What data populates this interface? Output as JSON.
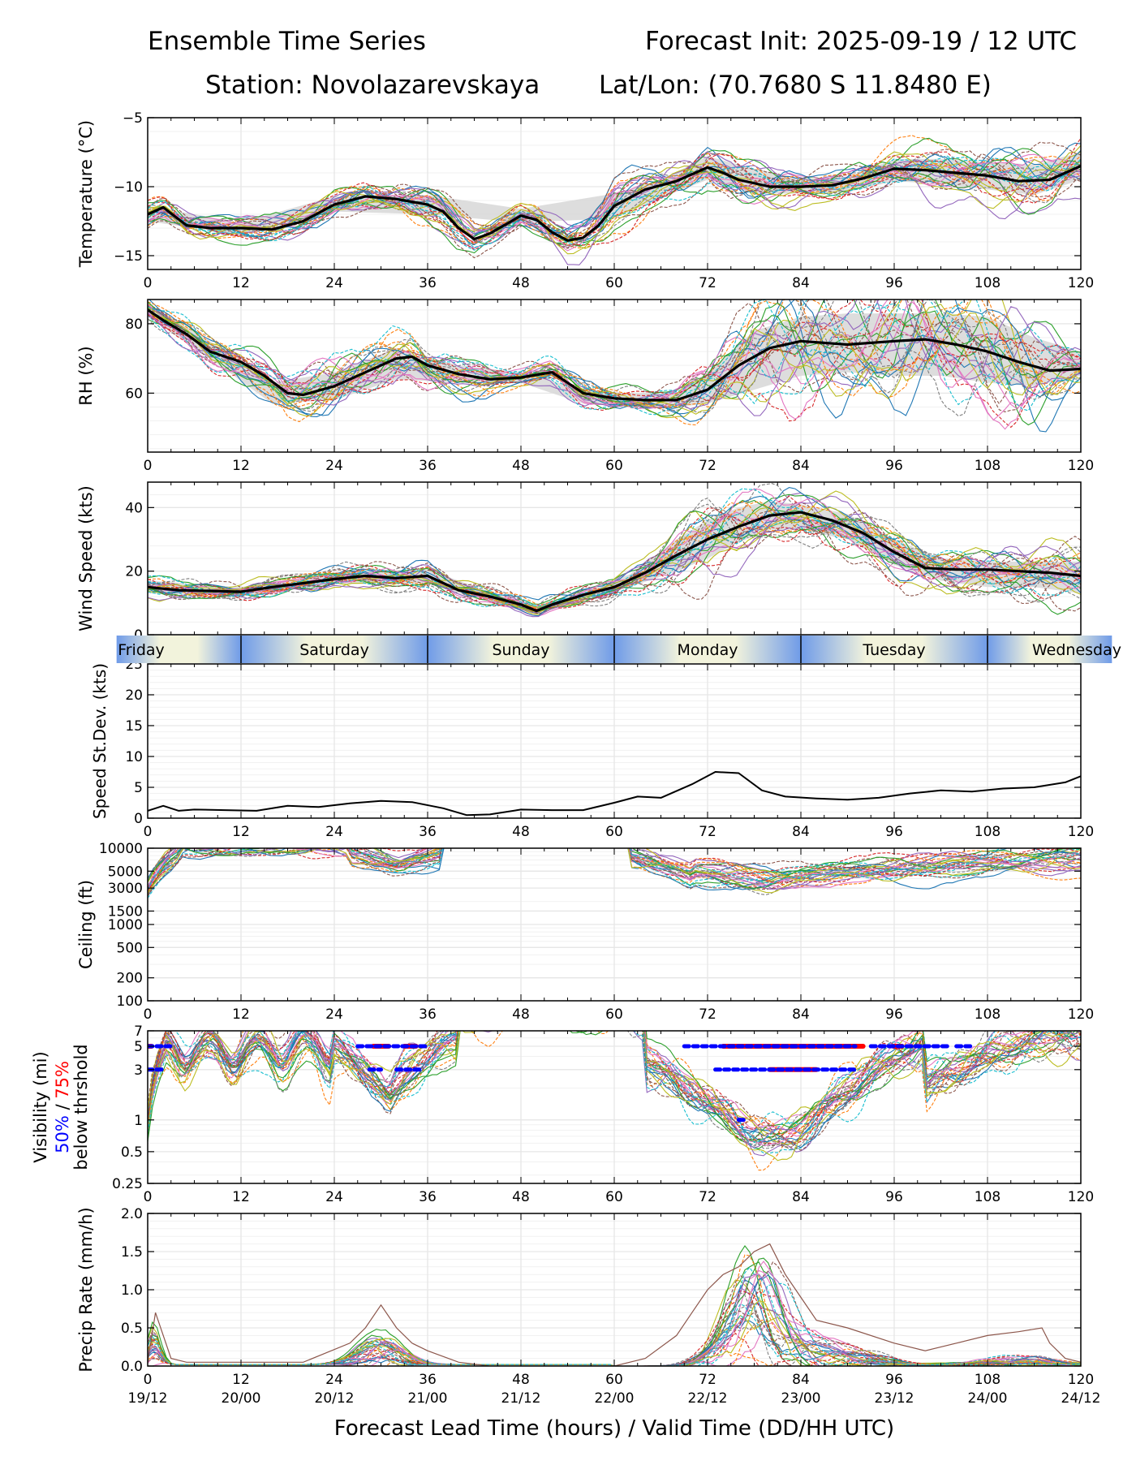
{
  "header": {
    "title_left": "Ensemble Time Series",
    "title_right": "Forecast Init: 2025-09-19 / 12 UTC",
    "station": "Station: Novolazarevskaya",
    "latlon": "Lat/Lon: (70.7680 S 11.8480 E)"
  },
  "colors": {
    "mean": "#000000",
    "spread": "#d9d9d9",
    "grid": "#e6e6e6",
    "p50": "#0000ff",
    "p75": "#ff0000",
    "members": [
      "#1f77b4",
      "#ff7f0e",
      "#2ca02c",
      "#d62728",
      "#9467bd",
      "#8c564b",
      "#e377c2",
      "#7f7f7f",
      "#bcbd22",
      "#17becf"
    ],
    "day_blue": "#6f9be8",
    "day_cream": "#f2f3dc"
  },
  "chart_data": {
    "type": "line",
    "x_ticks": [
      0,
      12,
      24,
      36,
      48,
      60,
      72,
      84,
      96,
      108,
      120
    ],
    "xlim": [
      0,
      120
    ],
    "xlabel": "Forecast Lead Time (hours) / Valid Time (DD/HH UTC)",
    "valid_times": [
      "19/12",
      "20/00",
      "20/12",
      "21/00",
      "21/12",
      "22/00",
      "22/12",
      "23/00",
      "23/12",
      "24/00",
      "24/12"
    ],
    "days": [
      {
        "label": "Friday",
        "start": -4,
        "end": 12
      },
      {
        "label": "Saturday",
        "start": 12,
        "end": 36
      },
      {
        "label": "Sunday",
        "start": 36,
        "end": 60
      },
      {
        "label": "Monday",
        "start": 60,
        "end": 84
      },
      {
        "label": "Tuesday",
        "start": 84,
        "end": 108
      },
      {
        "label": "Wednesday",
        "start": 108,
        "end": 124
      }
    ],
    "panels": [
      {
        "id": "temperature",
        "ylabel": "Temperature (°C)",
        "ylim": [
          -16,
          -5
        ],
        "yticks": [
          -15,
          -10,
          -5
        ],
        "ytick_labels": [
          "−15",
          "−10",
          "−5"
        ],
        "series": [
          {
            "name": "ensemble-mean",
            "x": [
              0,
              2,
              5,
              8,
              12,
              16,
              20,
              24,
              28,
              32,
              36,
              38,
              40,
              42,
              44,
              48,
              50,
              52,
              54,
              56,
              58,
              60,
              64,
              68,
              72,
              74,
              76,
              80,
              84,
              88,
              92,
              96,
              100,
              104,
              108,
              112,
              116,
              120
            ],
            "y": [
              -12,
              -11.5,
              -12.8,
              -13,
              -13,
              -13.1,
              -12.5,
              -11.3,
              -10.7,
              -10.9,
              -11.3,
              -11.8,
              -13.0,
              -13.8,
              -13.4,
              -12.1,
              -12.4,
              -13.3,
              -13.9,
              -13.7,
              -12.8,
              -11.4,
              -10.2,
              -9.6,
              -8.6,
              -9.0,
              -9.5,
              -10.0,
              -10.0,
              -9.9,
              -9.4,
              -8.7,
              -8.8,
              -9.0,
              -9.2,
              -9.6,
              -9.5,
              -8.5
            ]
          }
        ],
        "spread": {
          "x": [
            0,
            12,
            24,
            36,
            48,
            60,
            66,
            72,
            78,
            84,
            90,
            96,
            102,
            108,
            114,
            120
          ],
          "lo": [
            -12.5,
            -13.5,
            -11.8,
            -12.0,
            -12.6,
            -12.3,
            -10.8,
            -9.5,
            -10.5,
            -10.5,
            -10.4,
            -9.6,
            -9.8,
            -10.2,
            -10.6,
            -9.5
          ],
          "hi": [
            -11.4,
            -12.6,
            -10.7,
            -10.6,
            -11.6,
            -10.5,
            -9.5,
            -7.8,
            -8.7,
            -9.4,
            -9.3,
            -8.0,
            -8.0,
            -8.2,
            -8.4,
            -7.5
          ]
        }
      },
      {
        "id": "rh",
        "ylabel": "RH (%)",
        "ylim": [
          43,
          87
        ],
        "yticks": [
          60,
          80
        ],
        "ytick_labels": [
          "60",
          "80"
        ],
        "series": [
          {
            "name": "ensemble-mean",
            "x": [
              0,
              2,
              5,
              8,
              12,
              15,
              18,
              20,
              24,
              28,
              32,
              34,
              36,
              40,
              44,
              48,
              52,
              56,
              60,
              64,
              68,
              72,
              76,
              80,
              84,
              90,
              96,
              100,
              104,
              108,
              112,
              116,
              120
            ],
            "y": [
              84,
              81,
              77,
              72,
              69,
              65,
              60,
              59.5,
              62,
              66,
              70,
              70.5,
              68,
              65.5,
              64,
              64.5,
              66,
              60,
              58.5,
              58,
              58,
              61,
              68,
              73,
              75,
              74,
              75,
              75.5,
              74,
              72,
              69,
              66.5,
              67
            ]
          }
        ],
        "spread": {
          "x": [
            0,
            8,
            16,
            24,
            32,
            40,
            48,
            56,
            62,
            68,
            72,
            78,
            84,
            90,
            96,
            102,
            108,
            114,
            120
          ],
          "lo": [
            82,
            70,
            57,
            58,
            64,
            63,
            63,
            57,
            56,
            56,
            57,
            61,
            65,
            66,
            65,
            65,
            63,
            62,
            65
          ],
          "hi": [
            86,
            75,
            63,
            66,
            73,
            68,
            66,
            61,
            60,
            60,
            66,
            78,
            82,
            83,
            83,
            83,
            82,
            76,
            72
          ]
        }
      },
      {
        "id": "wind",
        "ylabel": "Wind Speed (kts)",
        "ylim": [
          0,
          48
        ],
        "yticks": [
          0,
          20,
          40
        ],
        "ytick_labels": [
          "0",
          "20",
          "40"
        ],
        "series": [
          {
            "name": "ensemble-mean",
            "x": [
              0,
              4,
              8,
              12,
              16,
              20,
              24,
              28,
              32,
              36,
              40,
              44,
              48,
              50,
              52,
              56,
              60,
              64,
              68,
              72,
              76,
              80,
              84,
              88,
              92,
              96,
              100,
              104,
              108,
              112,
              116,
              120
            ],
            "y": [
              15,
              14,
              13.8,
              13.5,
              15,
              16.2,
              17.5,
              18.5,
              17.8,
              18.5,
              14,
              12,
              9.5,
              7.5,
              9.5,
              12.5,
              15,
              19.5,
              25,
              30,
              34,
              37.5,
              38.5,
              36,
              32,
              26,
              21,
              20.5,
              20.5,
              20,
              19.5,
              18.5
            ]
          }
        ],
        "spread": {
          "x": [
            0,
            12,
            24,
            36,
            44,
            50,
            56,
            62,
            68,
            72,
            76,
            80,
            84,
            90,
            96,
            102,
            108,
            114,
            120
          ],
          "lo": [
            13,
            12,
            16,
            16,
            10,
            6.5,
            11,
            15,
            20,
            24,
            29,
            33,
            33,
            30,
            22,
            17,
            15,
            15,
            13
          ],
          "hi": [
            17,
            15,
            19.5,
            20.5,
            13.5,
            9,
            14,
            19,
            30,
            36,
            40,
            42,
            41,
            38,
            30,
            24,
            23,
            23,
            23
          ]
        }
      },
      {
        "id": "speed-stdev",
        "ylabel": "Speed St.Dev. (kts)",
        "ylim": [
          0,
          25
        ],
        "yticks": [
          0,
          5,
          10,
          15,
          20,
          25
        ],
        "ytick_labels": [
          "0",
          "5",
          "10",
          "15",
          "20",
          "25"
        ],
        "series": [
          {
            "name": "speed-stdev",
            "x": [
              0,
              2,
              4,
              6,
              10,
              14,
              18,
              22,
              26,
              30,
              34,
              38,
              41,
              44,
              48,
              52,
              56,
              60,
              63,
              66,
              70,
              73,
              76,
              79,
              82,
              86,
              90,
              94,
              98,
              102,
              106,
              110,
              114,
              118,
              120
            ],
            "y": [
              1.2,
              2.0,
              1.2,
              1.4,
              1.3,
              1.2,
              2.0,
              1.8,
              2.4,
              2.8,
              2.6,
              1.6,
              0.5,
              0.6,
              1.4,
              1.3,
              1.3,
              2.5,
              3.5,
              3.3,
              5.5,
              7.5,
              7.3,
              4.5,
              3.5,
              3.2,
              3.0,
              3.3,
              4.0,
              4.5,
              4.3,
              4.8,
              5.0,
              5.8,
              6.8
            ]
          }
        ]
      },
      {
        "id": "ceiling",
        "ylabel": "Ceiling (ft)",
        "log": true,
        "ylim": [
          100,
          10000
        ],
        "yticks": [
          100,
          200,
          500,
          1000,
          1500,
          3000,
          5000,
          10000
        ],
        "ytick_labels": [
          "100",
          "200",
          "500",
          "1000",
          "1500",
          "3000",
          "5000",
          "10000"
        ]
      },
      {
        "id": "visibility",
        "ylabel_parts": [
          "Visibility (mi)",
          "50%",
          " / ",
          "75%",
          "below thrshold"
        ],
        "log": true,
        "ylim": [
          0.25,
          7
        ],
        "yticks": [
          0.25,
          0.5,
          1,
          3,
          5,
          7
        ],
        "ytick_labels": [
          "0.25",
          "0.5",
          "1",
          "3",
          "5",
          "7"
        ],
        "threshold_50": [
          {
            "y": 5,
            "x": [
              [
                0,
                3
              ],
              [
                27,
                36
              ],
              [
                69,
                91
              ],
              [
                93,
                103
              ],
              [
                104,
                106
              ]
            ]
          },
          {
            "y": 3,
            "x": [
              [
                0,
                2
              ],
              [
                28.5,
                30
              ],
              [
                32,
                35
              ],
              [
                73,
                91
              ]
            ]
          },
          {
            "y": 1,
            "x": [
              [
                76,
                77
              ]
            ]
          }
        ],
        "threshold_75": [
          {
            "y": 5,
            "x": [
              [
                0,
                0.5
              ],
              [
                29,
                31
              ],
              [
                33,
                34.5
              ],
              [
                74,
                92
              ],
              [
                96,
                97
              ]
            ]
          },
          {
            "y": 3,
            "x": [
              [
                80,
                86
              ]
            ]
          }
        ]
      },
      {
        "id": "precip",
        "ylabel": "Precip Rate (mm/h)",
        "ylim": [
          0,
          2
        ],
        "yticks": [
          0,
          0.5,
          1,
          1.5,
          2
        ],
        "ytick_labels": [
          "0.0",
          "0.5",
          "1.0",
          "1.5",
          "2.0"
        ],
        "series": [
          {
            "name": "max-member",
            "x": [
              0,
              1,
              3,
              5,
              20,
              26,
              28,
              30,
              32,
              34,
              36,
              40,
              44,
              60,
              64,
              68,
              70,
              72,
              74,
              76,
              78,
              80,
              82,
              84,
              86,
              90,
              96,
              100,
              104,
              108,
              112,
              115,
              116,
              118,
              120
            ],
            "y": [
              0.05,
              0.7,
              0.1,
              0.05,
              0.05,
              0.3,
              0.5,
              0.8,
              0.5,
              0.3,
              0.2,
              0.05,
              0.0,
              0.0,
              0.1,
              0.4,
              0.7,
              1.0,
              1.2,
              1.3,
              1.5,
              1.6,
              1.2,
              0.9,
              0.6,
              0.5,
              0.3,
              0.2,
              0.3,
              0.4,
              0.45,
              0.5,
              0.3,
              0.1,
              0.05
            ]
          }
        ]
      }
    ]
  }
}
